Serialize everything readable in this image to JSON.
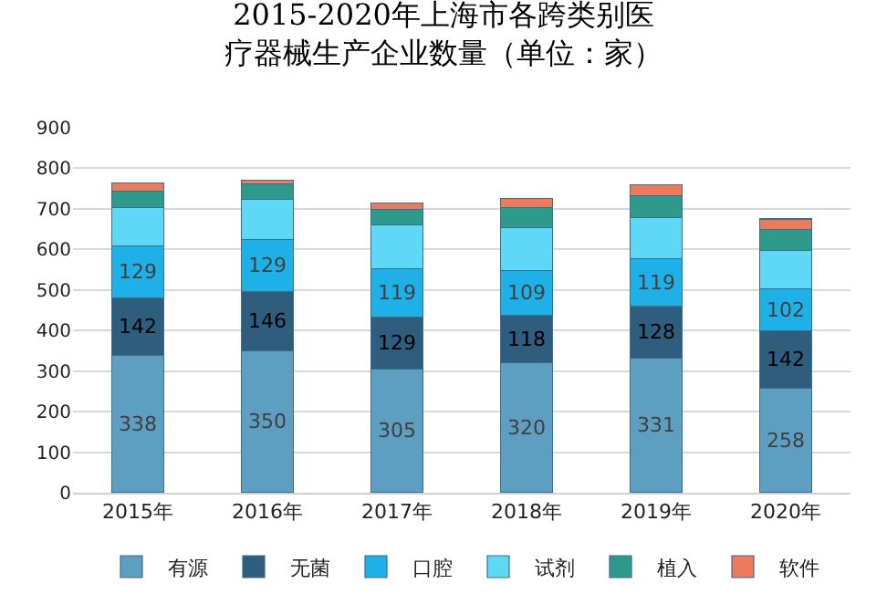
{
  "chart_data": {
    "type": "bar",
    "stacked": true,
    "title": "2015-2020年上海市各跨类别医疗器械生产企业数量（单位：家）",
    "categories": [
      "2015年",
      "2016年",
      "2017年",
      "2018年",
      "2019年",
      "2020年"
    ],
    "series": [
      {
        "name": "有源",
        "color": "#5e9ec0",
        "values": [
          338,
          350,
          305,
          320,
          331,
          258
        ],
        "value_labels": [
          "338",
          "350",
          "305",
          "320",
          "331",
          "258"
        ]
      },
      {
        "name": "无菌",
        "color": "#2e5d7e",
        "values": [
          142,
          146,
          129,
          118,
          128,
          142
        ],
        "value_labels": [
          "142",
          "146",
          "129",
          "118",
          "128",
          "142"
        ]
      },
      {
        "name": "口腔",
        "color": "#1fb0e8",
        "values": [
          129,
          129,
          119,
          109,
          119,
          102
        ],
        "value_labels": [
          "129",
          "129",
          "119",
          "109",
          "119",
          "102"
        ]
      },
      {
        "name": "试剂",
        "color": "#5fd8f5",
        "values": [
          95,
          98,
          107,
          107,
          101,
          96
        ]
      },
      {
        "name": "植入",
        "color": "#2e9a8c",
        "values": [
          39,
          39,
          39,
          50,
          53,
          51
        ]
      },
      {
        "name": "软件",
        "color": "#ee7a5c",
        "values": [
          20,
          8,
          16,
          21,
          28,
          26
        ]
      }
    ],
    "ylim": [
      0,
      900
    ],
    "yticks": [
      0,
      100,
      200,
      300,
      400,
      500,
      600,
      700,
      800,
      900
    ],
    "grid": "y",
    "legend": "bottom"
  }
}
